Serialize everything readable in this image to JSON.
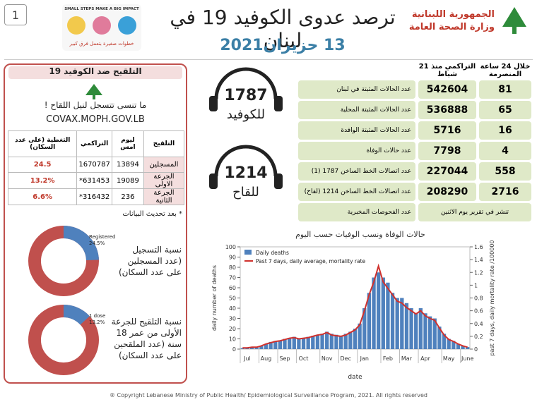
{
  "header": {
    "page_number": "1",
    "campaign_en": "SMALL STEPS MAKE A BIG IMPACT",
    "campaign_ar": "خطوات صغيرة بتعمل فرق كبير",
    "title": "ترصد عدوى الكوفيد 19 في لبنان",
    "date": "13 حزيران2021",
    "ministry": [
      "الجمهورية اللبنانية",
      "وزارة الصحة العامة"
    ]
  },
  "stats": {
    "header_24h": "خلال 24 ساعة المنصرمة",
    "header_cumulative": "التراكمي منذ 21 شباط",
    "rows": [
      {
        "label": "عدد الحالات المثبتة في لبنان",
        "cumulative": 542604,
        "last_24h": 81
      },
      {
        "label": "عدد الحالات المثبتة المحلية",
        "cumulative": 536888,
        "last_24h": 65
      },
      {
        "label": "عدد الحالات المثبتة الوافدة",
        "cumulative": 5716,
        "last_24h": 16
      },
      {
        "label": "عدد حالات الوفاة",
        "cumulative": 7798,
        "last_24h": 4
      },
      {
        "label": "عدد اتصالات الخط الساخن 1787 (1)",
        "cumulative": 227044,
        "last_24h": 558
      },
      {
        "label": "عدد اتصالات الخط الساخن 1214 (لقاح)",
        "cumulative": 208290,
        "last_24h": 2716
      }
    ],
    "tests": {
      "label": "عدد الفحوصات المخبرية",
      "note": "تنشر في تقرير يوم الاثنين"
    }
  },
  "hotlines": [
    {
      "number": "1787",
      "label": "للكوفيد"
    },
    {
      "number": "1214",
      "label": "للقاح"
    }
  ],
  "vaccination": {
    "title": "التلقيح ضد الكوفيد 19",
    "reminder": "ما تنسى تتسجل لنيل اللقاح !",
    "url": "COVAX.MOPH.GOV.LB",
    "table": {
      "header": [
        "التلقيح",
        "ليوم امس",
        "التراكمي",
        "التغطية (على عدد السكان)"
      ],
      "rows": [
        [
          "المسجلين",
          "13894",
          "1670787",
          "24.5"
        ],
        [
          "الجرعة الاولى",
          "19089",
          "631453*",
          "13.2%"
        ],
        [
          "الجرعة الثانية",
          "236",
          "316432*",
          "6.6%"
        ]
      ]
    },
    "note": "* بعد تحديث البيانات",
    "donuts": [
      {
        "name": "Registered",
        "value": 24.5,
        "value_label": "24.5%",
        "caption": [
          "نسبة التسجيل",
          "(عدد المسجلين",
          "على عدد السكان)"
        ]
      },
      {
        "name": "1 dose",
        "value": 13.2,
        "value_label": "13.2%",
        "caption": [
          "نسبة التلقيح للجرعة",
          "الأولى من عمر 18",
          "سنة (عدد الملقحين",
          "على عدد السكان)"
        ]
      }
    ]
  },
  "chart_data": {
    "type": "bar",
    "title": "حالات الوفاة ونسب الوفيات حسب اليوم",
    "x_label": "date",
    "y_label": "daily number of deaths",
    "y2_label": "past 7 days, daily mortality rate /100000",
    "categories": [
      "Jul",
      null,
      null,
      null,
      "Aug",
      null,
      null,
      null,
      "Sep",
      null,
      null,
      null,
      "Oct",
      null,
      null,
      null,
      null,
      "Nov",
      null,
      null,
      null,
      "Dec",
      null,
      null,
      null,
      "Jan",
      null,
      null,
      null,
      null,
      "Feb",
      null,
      null,
      null,
      "Mar",
      null,
      null,
      null,
      "Apr",
      null,
      null,
      null,
      null,
      "May",
      null,
      null,
      null,
      "June",
      null
    ],
    "series": [
      {
        "name": "Daily deaths",
        "type": "bar",
        "color": "#4f81bd",
        "values": [
          1,
          1,
          2,
          2,
          3,
          5,
          7,
          8,
          8,
          10,
          11,
          12,
          10,
          11,
          12,
          13,
          14,
          15,
          17,
          15,
          14,
          13,
          15,
          17,
          20,
          25,
          40,
          55,
          70,
          75,
          70,
          65,
          55,
          50,
          50,
          45,
          40,
          35,
          40,
          35,
          32,
          30,
          22,
          15,
          10,
          8,
          5,
          3,
          2
        ]
      },
      {
        "name": "Past 7 days, daily average, mortality rate",
        "type": "line",
        "axis": "y2",
        "color": "#d0312d",
        "values": [
          0.02,
          0.02,
          0.03,
          0.03,
          0.05,
          0.08,
          0.1,
          0.12,
          0.13,
          0.15,
          0.17,
          0.18,
          0.16,
          0.17,
          0.18,
          0.2,
          0.22,
          0.23,
          0.26,
          0.22,
          0.21,
          0.2,
          0.22,
          0.26,
          0.3,
          0.38,
          0.6,
          0.85,
          1.05,
          1.3,
          1.05,
          0.95,
          0.85,
          0.75,
          0.72,
          0.65,
          0.6,
          0.55,
          0.6,
          0.52,
          0.48,
          0.45,
          0.33,
          0.22,
          0.15,
          0.12,
          0.08,
          0.05,
          0.03
        ]
      }
    ],
    "ylim": [
      0,
      100
    ],
    "yticks": [
      0,
      10,
      20,
      30,
      40,
      50,
      60,
      70,
      80,
      90,
      100
    ],
    "y2lim": [
      0,
      1.6
    ],
    "y2ticks": [
      0,
      0.2,
      0.4,
      0.6,
      0.8,
      1,
      1.2,
      1.4,
      1.6
    ],
    "legend": "top-left"
  },
  "footer": {
    "copyright": "® Copyright Lebanese Ministry of Public Health/ Epidemiological Surveillance Program, 2021. All rights reserved"
  }
}
